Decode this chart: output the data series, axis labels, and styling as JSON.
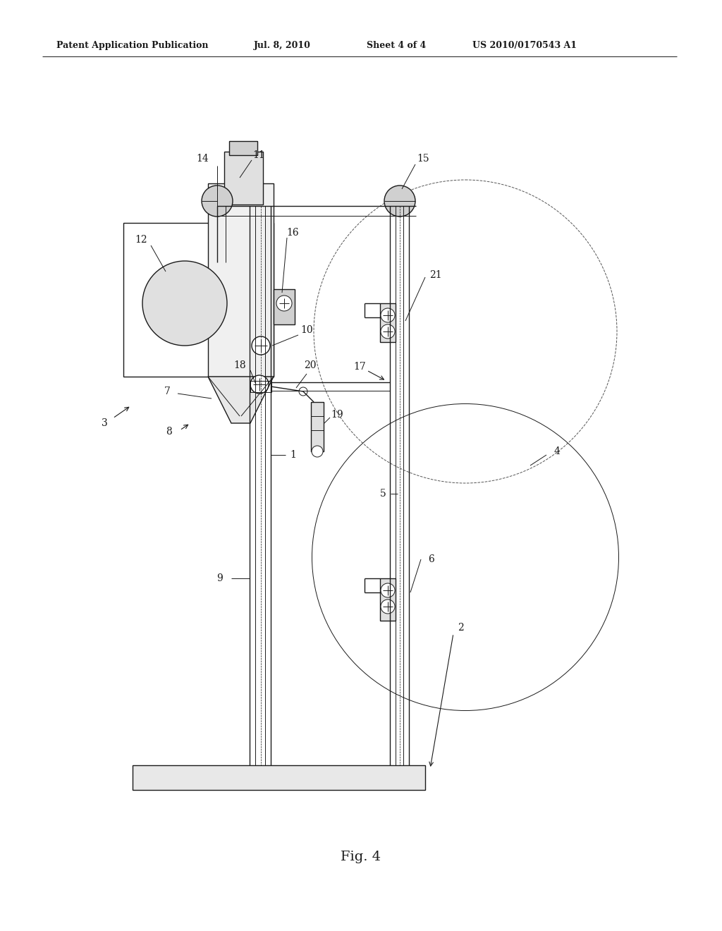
{
  "background_color": "#ffffff",
  "header_text": "Patent Application Publication",
  "header_date": "Jul. 8, 2010",
  "header_sheet": "Sheet 4 of 4",
  "header_patent": "US 2010/0170543 A1",
  "figure_label": "Fig. 4",
  "color_main": "#1a1a1a",
  "lw_main": 1.4,
  "lw_med": 1.0,
  "lw_thin": 0.7,
  "label_fontsize": 10.0
}
